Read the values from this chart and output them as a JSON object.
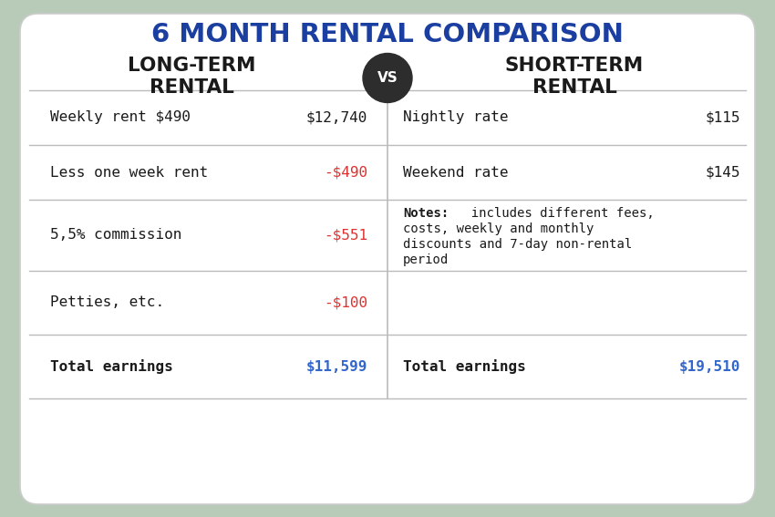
{
  "title": "6 MONTH RENTAL COMPARISON",
  "title_color": "#1a3fa0",
  "vs_text": "VS",
  "vs_bg": "#2d2d2d",
  "vs_text_color": "#ffffff",
  "left_header": "LONG-TERM\nRENTAL",
  "right_header": "SHORT-TERM\nRENTAL",
  "header_color": "#1a1a1a",
  "bg_color": "#ffffff",
  "outer_bg": "#b8cbb8",
  "divider_color": "#bbbbbb",
  "left_rows": [
    {
      "label": "Weekly rent $490",
      "value": "$12,740",
      "value_color": "#1a1a1a",
      "bold": false
    },
    {
      "label": "Less one week rent",
      "value": "-$490",
      "value_color": "#e03030",
      "bold": false
    },
    {
      "label": "5,5% commission",
      "value": "-$551",
      "value_color": "#e03030",
      "bold": false
    },
    {
      "label": "Petties, etc.",
      "value": "-$100",
      "value_color": "#e03030",
      "bold": false
    },
    {
      "label": "Total earnings",
      "value": "$11,599",
      "value_color": "#3366cc",
      "bold": true
    }
  ],
  "right_rows": [
    {
      "label": "Nightly rate",
      "value": "$115",
      "value_color": "#1a1a1a",
      "bold": false,
      "is_note": false
    },
    {
      "label": "Weekend rate",
      "value": "$145",
      "value_color": "#1a1a1a",
      "bold": false,
      "is_note": false
    },
    {
      "label": "",
      "value": "",
      "value_color": "#1a1a1a",
      "bold": false,
      "is_note": true
    },
    {
      "label": "",
      "value": "",
      "value_color": "#1a1a1a",
      "bold": false,
      "is_note": false
    },
    {
      "label": "Total earnings",
      "value": "$19,510",
      "value_color": "#3366cc",
      "bold": true,
      "is_note": false
    }
  ],
  "note_lines": [
    "Notes:  includes different fees,",
    "costs, weekly and monthly",
    "discounts and 7-day non-rental",
    "period"
  ],
  "note_bold_prefix": "Notes:",
  "note_rest": "  includes different fees,"
}
